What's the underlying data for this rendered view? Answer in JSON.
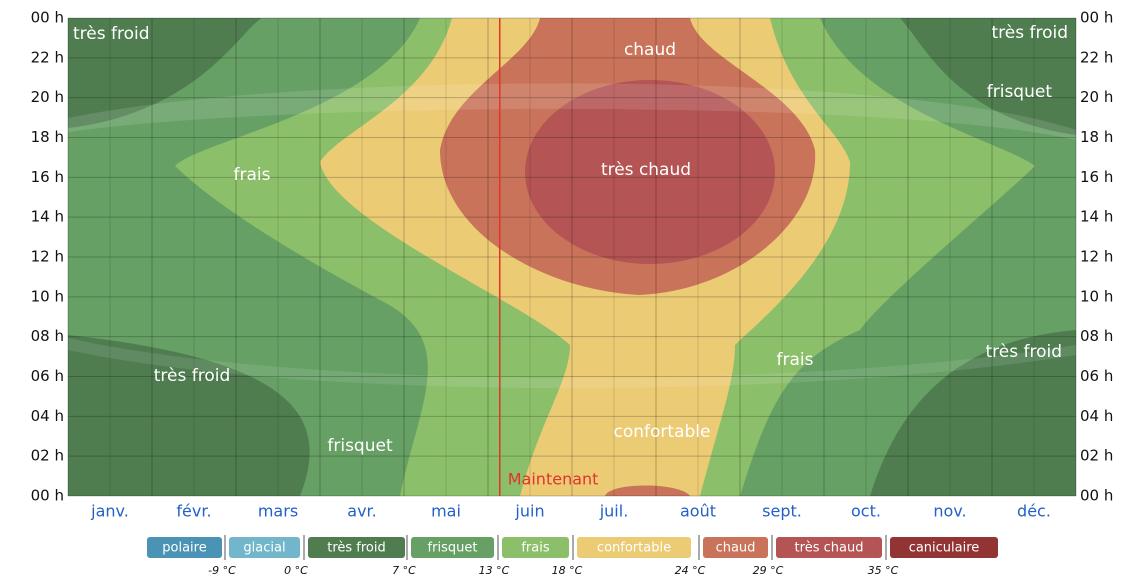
{
  "chart_data": {
    "type": "contour",
    "categories": [
      "janv.",
      "févr.",
      "mars",
      "avr.",
      "mai",
      "juin",
      "juil.",
      "août",
      "sept.",
      "oct.",
      "nov.",
      "déc."
    ],
    "ylim": [
      0,
      24
    ],
    "yticks": [
      {
        "value": 0,
        "label": "00 h"
      },
      {
        "value": 2,
        "label": "02 h"
      },
      {
        "value": 4,
        "label": "04 h"
      },
      {
        "value": 6,
        "label": "06 h"
      },
      {
        "value": 8,
        "label": "08 h"
      },
      {
        "value": 10,
        "label": "10 h"
      },
      {
        "value": 12,
        "label": "12 h"
      },
      {
        "value": 14,
        "label": "14 h"
      },
      {
        "value": 16,
        "label": "16 h"
      },
      {
        "value": 18,
        "label": "18 h"
      },
      {
        "value": 20,
        "label": "20 h"
      },
      {
        "value": 22,
        "label": "22 h"
      },
      {
        "value": 24,
        "label": "00 h"
      }
    ],
    "grid": true,
    "bands": [
      {
        "name": "polaire",
        "color": "#4a93b4"
      },
      {
        "name": "glacial",
        "color": "#72b6cc"
      },
      {
        "name": "très froid",
        "color": "#4f7d50"
      },
      {
        "name": "frisquet",
        "color": "#66a065"
      },
      {
        "name": "frais",
        "color": "#8cbf6a"
      },
      {
        "name": "confortable",
        "color": "#eccb75"
      },
      {
        "name": "chaud",
        "color": "#c9735a"
      },
      {
        "name": "très chaud",
        "color": "#b45454"
      },
      {
        "name": "caniculaire",
        "color": "#923434"
      }
    ],
    "thresholds": [
      {
        "value": -9,
        "label": "-9 °C"
      },
      {
        "value": 0,
        "label": "0 °C"
      },
      {
        "value": 7,
        "label": "7 °C"
      },
      {
        "value": 13,
        "label": "13 °C"
      },
      {
        "value": 18,
        "label": "18 °C"
      },
      {
        "value": 24,
        "label": "24 °C"
      },
      {
        "value": 29,
        "label": "29 °C"
      },
      {
        "value": 35,
        "label": "35 °C"
      }
    ],
    "annotations": [
      "très froid",
      "très froid",
      "chaud",
      "frisquet",
      "frais",
      "très chaud",
      "frais",
      "très froid",
      "très froid",
      "confortable",
      "frisquet"
    ],
    "now": {
      "label": "Maintenant",
      "x": 5.14
    }
  }
}
